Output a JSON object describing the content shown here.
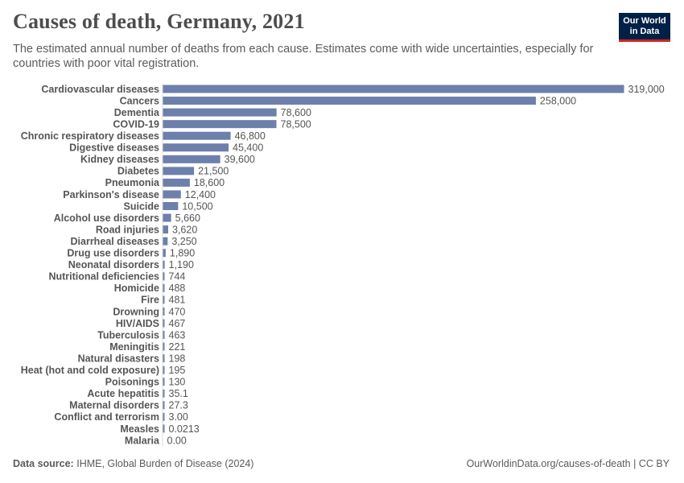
{
  "header": {
    "title": "Causes of death, Germany, 2021",
    "subtitle": "The estimated annual number of deaths from each cause. Estimates come with wide uncertainties, especially for countries with poor vital registration."
  },
  "logo": {
    "line1": "Our World",
    "line2": "in Data"
  },
  "footer": {
    "source_label": "Data source:",
    "source_text": "IHME, Global Burden of Disease (2024)",
    "url": "OurWorldinData.org/causes-of-death | CC BY"
  },
  "colors": {
    "bar": "#6d7fab",
    "text": "#555555",
    "logo_bg": "#002147",
    "logo_accent": "#ce261e"
  },
  "chart_data": {
    "type": "bar",
    "orientation": "horizontal",
    "title": "Causes of death, Germany, 2021",
    "xlabel": "",
    "ylabel": "",
    "xlim": [
      0,
      319000
    ],
    "categories": [
      "Cardiovascular diseases",
      "Cancers",
      "Dementia",
      "COVID-19",
      "Chronic respiratory diseases",
      "Digestive diseases",
      "Kidney diseases",
      "Diabetes",
      "Pneumonia",
      "Parkinson's disease",
      "Suicide",
      "Alcohol use disorders",
      "Road injuries",
      "Diarrheal diseases",
      "Drug use disorders",
      "Neonatal disorders",
      "Nutritional deficiencies",
      "Homicide",
      "Fire",
      "Drowning",
      "HIV/AIDS",
      "Tuberculosis",
      "Meningitis",
      "Natural disasters",
      "Heat (hot and cold exposure)",
      "Poisonings",
      "Acute hepatitis",
      "Maternal disorders",
      "Conflict and terrorism",
      "Measles",
      "Malaria"
    ],
    "values": [
      319000,
      258000,
      78600,
      78500,
      46800,
      45400,
      39600,
      21500,
      18600,
      12400,
      10500,
      5660,
      3620,
      3250,
      1890,
      1190,
      744,
      488,
      481,
      470,
      467,
      463,
      221,
      198,
      195,
      130,
      35.1,
      27.3,
      3.0,
      0.0213,
      0.0
    ],
    "value_labels": [
      "319,000",
      "258,000",
      "78,600",
      "78,500",
      "46,800",
      "45,400",
      "39,600",
      "21,500",
      "18,600",
      "12,400",
      "10,500",
      "5,660",
      "3,620",
      "3,250",
      "1,890",
      "1,190",
      "744",
      "488",
      "481",
      "470",
      "467",
      "463",
      "221",
      "198",
      "195",
      "130",
      "35.1",
      "27.3",
      "3.00",
      "0.0213",
      "0.00"
    ]
  }
}
